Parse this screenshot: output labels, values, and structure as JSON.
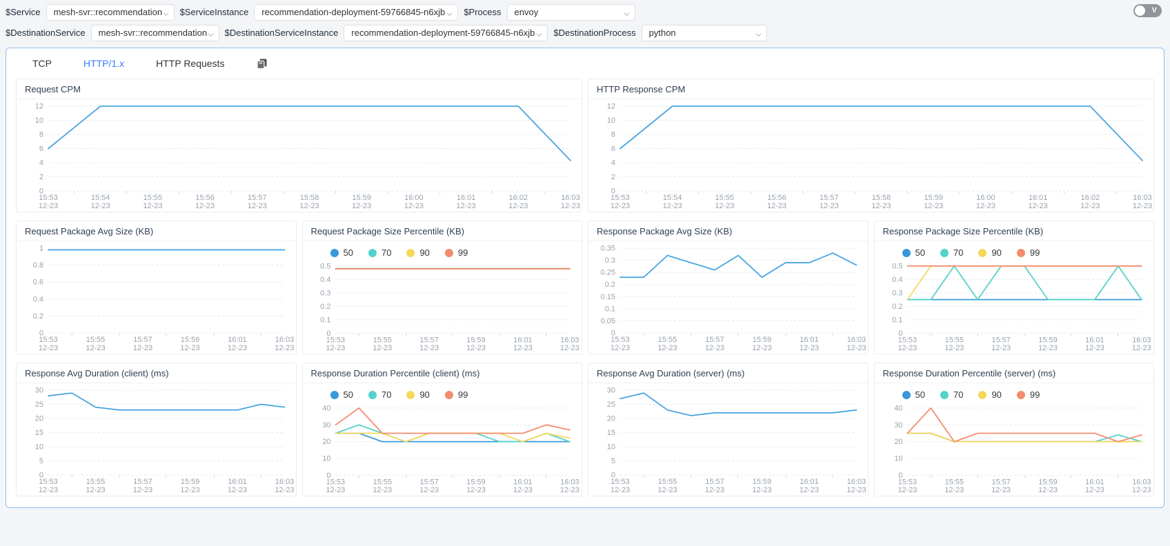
{
  "filter_bar": {
    "filters": [
      {
        "row": 1,
        "label": "$Service",
        "value": "mesh-svr::recommendation"
      },
      {
        "row": 1,
        "label": "$ServiceInstance",
        "value": "recommendation-deployment-59766845-n6xjb"
      },
      {
        "row": 1,
        "label": "$Process",
        "value": "envoy"
      },
      {
        "row": 2,
        "label": "$DestinationService",
        "value": "mesh-svr::recommendation"
      },
      {
        "row": 2,
        "label": "$DestinationServiceInstance",
        "value": "recommendation-deployment-59766845-n6xjb"
      },
      {
        "row": 2,
        "label": "$DestinationProcess",
        "value": "python"
      }
    ],
    "toggle": {
      "label": "V",
      "on": false
    }
  },
  "tabs": [
    {
      "label": "TCP",
      "active": false
    },
    {
      "label": "HTTP/1.x",
      "active": true
    },
    {
      "label": "HTTP Requests",
      "active": false,
      "trailing_icon": "copy-pages-icon"
    }
  ],
  "palette": {
    "line": "#4aa5e0",
    "p50": "#3898da",
    "p70": "#53d2ca",
    "p90": "#f7d75a",
    "p99": "#f48b6e",
    "grid": "#e5e8ec",
    "tick_text": "#98a1ac",
    "tab_active": "#3a7afe",
    "panel_border": "#8fc0f2"
  },
  "chart_data": [
    {
      "type": "line",
      "title": "Request CPM",
      "span": 2,
      "legend": false,
      "x": [
        "15:53",
        "15:54",
        "15:55",
        "15:56",
        "15:57",
        "15:58",
        "15:59",
        "16:00",
        "16:01",
        "16:02",
        "16:03"
      ],
      "x_date": "12-23",
      "tick_every": 1,
      "ylim": [
        0,
        12
      ],
      "yticks": [
        0,
        2,
        4,
        6,
        8,
        10,
        12
      ],
      "series": [
        {
          "name": "",
          "color": "line",
          "values": [
            6,
            12,
            12,
            12,
            12,
            12,
            12,
            12,
            12,
            12,
            4.3
          ]
        }
      ]
    },
    {
      "type": "line",
      "title": "HTTP Response CPM",
      "span": 2,
      "legend": false,
      "x": [
        "15:53",
        "15:54",
        "15:55",
        "15:56",
        "15:57",
        "15:58",
        "15:59",
        "16:00",
        "16:01",
        "16:02",
        "16:03"
      ],
      "x_date": "12-23",
      "tick_every": 1,
      "ylim": [
        0,
        12
      ],
      "yticks": [
        0,
        2,
        4,
        6,
        8,
        10,
        12
      ],
      "series": [
        {
          "name": "",
          "color": "line",
          "values": [
            6,
            12,
            12,
            12,
            12,
            12,
            12,
            12,
            12,
            12,
            4.3
          ]
        }
      ]
    },
    {
      "type": "line",
      "title": "Request Package Avg Size (KB)",
      "span": 1,
      "legend": false,
      "x": [
        "15:53",
        "15:54",
        "15:55",
        "15:56",
        "15:57",
        "15:58",
        "15:59",
        "16:00",
        "16:01",
        "16:02",
        "16:03"
      ],
      "x_date": "12-23",
      "tick_every": 2,
      "ylim": [
        0,
        1
      ],
      "yticks": [
        0,
        0.2,
        0.4,
        0.6,
        0.8,
        1
      ],
      "series": [
        {
          "name": "",
          "color": "line",
          "values": [
            0.98,
            0.98,
            0.98,
            0.98,
            0.98,
            0.98,
            0.98,
            0.98,
            0.98,
            0.98,
            0.98
          ]
        }
      ]
    },
    {
      "type": "line",
      "title": "Request Package Size Percentile (KB)",
      "span": 1,
      "legend": true,
      "x": [
        "15:53",
        "15:54",
        "15:55",
        "15:56",
        "15:57",
        "15:58",
        "15:59",
        "16:00",
        "16:01",
        "16:02",
        "16:03"
      ],
      "x_date": "12-23",
      "tick_every": 2,
      "ylim": [
        0,
        0.5
      ],
      "yticks": [
        0,
        0.1,
        0.2,
        0.3,
        0.4,
        0.5
      ],
      "series": [
        {
          "name": "50",
          "color": "p50",
          "values": [
            0.48,
            0.48,
            0.48,
            0.48,
            0.48,
            0.48,
            0.48,
            0.48,
            0.48,
            0.48,
            0.48
          ]
        },
        {
          "name": "70",
          "color": "p70",
          "values": [
            0.48,
            0.48,
            0.48,
            0.48,
            0.48,
            0.48,
            0.48,
            0.48,
            0.48,
            0.48,
            0.48
          ]
        },
        {
          "name": "90",
          "color": "p90",
          "values": [
            0.48,
            0.48,
            0.48,
            0.48,
            0.48,
            0.48,
            0.48,
            0.48,
            0.48,
            0.48,
            0.48
          ]
        },
        {
          "name": "99",
          "color": "p99",
          "values": [
            0.48,
            0.48,
            0.48,
            0.48,
            0.48,
            0.48,
            0.48,
            0.48,
            0.48,
            0.48,
            0.48
          ]
        }
      ]
    },
    {
      "type": "line",
      "title": "Response Package Avg Size (KB)",
      "span": 1,
      "legend": false,
      "x": [
        "15:53",
        "15:54",
        "15:55",
        "15:56",
        "15:57",
        "15:58",
        "15:59",
        "16:00",
        "16:01",
        "16:02",
        "16:03"
      ],
      "x_date": "12-23",
      "tick_every": 2,
      "ylim": [
        0,
        0.35
      ],
      "yticks": [
        0,
        0.05,
        0.1,
        0.15,
        0.2,
        0.25,
        0.3,
        0.35
      ],
      "series": [
        {
          "name": "",
          "color": "line",
          "values": [
            0.23,
            0.23,
            0.32,
            0.29,
            0.26,
            0.32,
            0.23,
            0.29,
            0.29,
            0.33,
            0.28
          ]
        }
      ]
    },
    {
      "type": "line",
      "title": "Response Package Size Percentile (KB)",
      "span": 1,
      "legend": true,
      "x": [
        "15:53",
        "15:54",
        "15:55",
        "15:56",
        "15:57",
        "15:58",
        "15:59",
        "16:00",
        "16:01",
        "16:02",
        "16:03"
      ],
      "x_date": "12-23",
      "tick_every": 2,
      "ylim": [
        0,
        0.5
      ],
      "yticks": [
        0,
        0.1,
        0.2,
        0.3,
        0.4,
        0.5
      ],
      "series": [
        {
          "name": "50",
          "color": "p50",
          "values": [
            0.25,
            0.25,
            0.25,
            0.25,
            0.25,
            0.25,
            0.25,
            0.25,
            0.25,
            0.25,
            0.25
          ]
        },
        {
          "name": "70",
          "color": "p70",
          "values": [
            0.25,
            0.25,
            0.5,
            0.25,
            0.5,
            0.5,
            0.25,
            0.25,
            0.25,
            0.5,
            0.25
          ]
        },
        {
          "name": "90",
          "color": "p90",
          "values": [
            0.25,
            0.5,
            0.5,
            0.5,
            0.5,
            0.5,
            0.5,
            0.5,
            0.5,
            0.5,
            0.5
          ]
        },
        {
          "name": "99",
          "color": "p99",
          "values": [
            0.5,
            0.5,
            0.5,
            0.5,
            0.5,
            0.5,
            0.5,
            0.5,
            0.5,
            0.5,
            0.5
          ]
        }
      ]
    },
    {
      "type": "line",
      "title": "Response Avg Duration (client) (ms)",
      "span": 1,
      "legend": false,
      "x": [
        "15:53",
        "15:54",
        "15:55",
        "15:56",
        "15:57",
        "15:58",
        "15:59",
        "16:00",
        "16:01",
        "16:02",
        "16:03"
      ],
      "x_date": "12-23",
      "tick_every": 2,
      "ylim": [
        0,
        30
      ],
      "yticks": [
        0,
        5,
        10,
        15,
        20,
        25,
        30
      ],
      "series": [
        {
          "name": "",
          "color": "line",
          "values": [
            28,
            29,
            24,
            23,
            23,
            23,
            23,
            23,
            23,
            25,
            24
          ]
        }
      ]
    },
    {
      "type": "line",
      "title": "Response Duration Percentile (client) (ms)",
      "span": 1,
      "legend": true,
      "x": [
        "15:53",
        "15:54",
        "15:55",
        "15:56",
        "15:57",
        "15:58",
        "15:59",
        "16:00",
        "16:01",
        "16:02",
        "16:03"
      ],
      "x_date": "12-23",
      "tick_every": 2,
      "ylim": [
        0,
        40
      ],
      "yticks": [
        0,
        10,
        20,
        30,
        40
      ],
      "series": [
        {
          "name": "50",
          "color": "p50",
          "values": [
            25,
            25,
            20,
            20,
            20,
            20,
            20,
            20,
            20,
            20,
            20
          ]
        },
        {
          "name": "70",
          "color": "p70",
          "values": [
            25,
            30,
            25,
            20,
            25,
            25,
            25,
            20,
            20,
            25,
            20
          ]
        },
        {
          "name": "90",
          "color": "p90",
          "values": [
            25,
            25,
            25,
            20,
            25,
            25,
            25,
            25,
            20,
            25,
            22
          ]
        },
        {
          "name": "99",
          "color": "p99",
          "values": [
            30,
            40,
            25,
            25,
            25,
            25,
            25,
            25,
            25,
            30,
            27
          ]
        }
      ]
    },
    {
      "type": "line",
      "title": "Response Avg Duration (server) (ms)",
      "span": 1,
      "legend": false,
      "x": [
        "15:53",
        "15:54",
        "15:55",
        "15:56",
        "15:57",
        "15:58",
        "15:59",
        "16:00",
        "16:01",
        "16:02",
        "16:03"
      ],
      "x_date": "12-23",
      "tick_every": 2,
      "ylim": [
        0,
        30
      ],
      "yticks": [
        0,
        5,
        10,
        15,
        20,
        25,
        30
      ],
      "series": [
        {
          "name": "",
          "color": "line",
          "values": [
            27,
            29,
            23,
            21,
            22,
            22,
            22,
            22,
            22,
            22,
            23
          ]
        }
      ]
    },
    {
      "type": "line",
      "title": "Response Duration Percentile (server) (ms)",
      "span": 1,
      "legend": true,
      "x": [
        "15:53",
        "15:54",
        "15:55",
        "15:56",
        "15:57",
        "15:58",
        "15:59",
        "16:00",
        "16:01",
        "16:02",
        "16:03"
      ],
      "x_date": "12-23",
      "tick_every": 2,
      "ylim": [
        0,
        40
      ],
      "yticks": [
        0,
        10,
        20,
        30,
        40
      ],
      "series": [
        {
          "name": "50",
          "color": "p50",
          "values": [
            25,
            25,
            20,
            20,
            20,
            20,
            20,
            20,
            20,
            20,
            20
          ]
        },
        {
          "name": "70",
          "color": "p70",
          "values": [
            25,
            25,
            20,
            20,
            20,
            20,
            20,
            20,
            20,
            24,
            20
          ]
        },
        {
          "name": "90",
          "color": "p90",
          "values": [
            25,
            25,
            20,
            20,
            20,
            20,
            20,
            20,
            20,
            20,
            20
          ]
        },
        {
          "name": "99",
          "color": "p99",
          "values": [
            25,
            40,
            20,
            25,
            25,
            25,
            25,
            25,
            25,
            20,
            24
          ]
        }
      ]
    }
  ]
}
